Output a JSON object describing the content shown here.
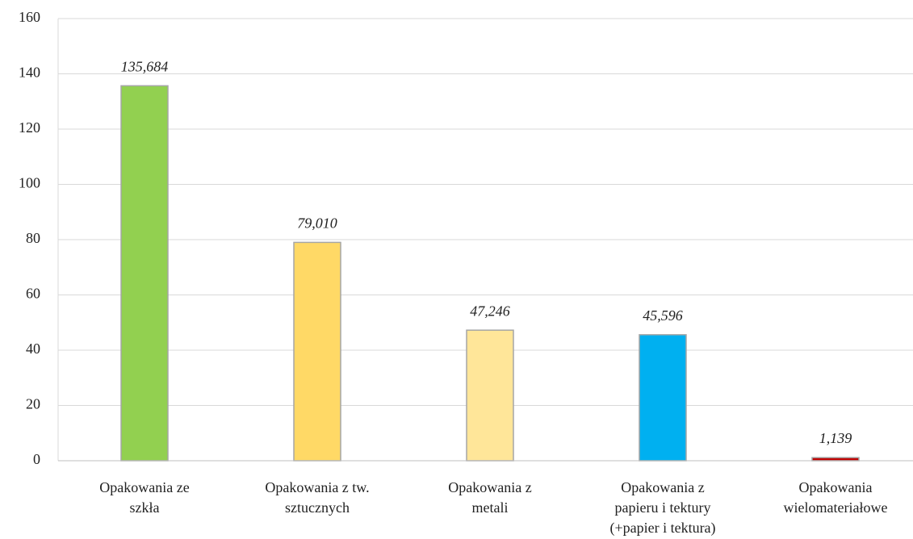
{
  "chart_data": {
    "type": "bar",
    "categories": [
      "Opakowania ze\nszkła",
      "Opakowania z tw.\nsztucznych",
      "Opakowania z\nmetali",
      "Opakowania z\npapieru i tektury\n(+papier i tektura)",
      "Opakowania\nwielomateriałowe"
    ],
    "values": [
      135.684,
      79.01,
      47.246,
      45.596,
      1.139
    ],
    "value_labels": [
      "135,684",
      "79,010",
      "47,246",
      "45,596",
      "1,139"
    ],
    "colors": [
      "#92d050",
      "#ffd966",
      "#ffe699",
      "#00b0f0",
      "#c00000"
    ],
    "ylim": [
      0,
      160
    ],
    "yticks": [
      0,
      20,
      40,
      60,
      80,
      100,
      120,
      140,
      160
    ],
    "grid": true
  }
}
